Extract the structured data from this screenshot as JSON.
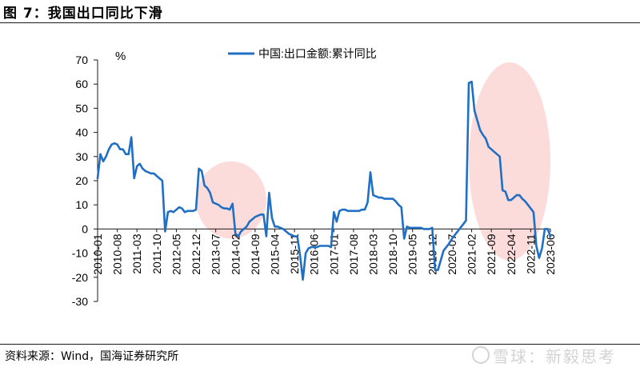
{
  "figure": {
    "title": "图 7：我国出口同比下滑",
    "source": "资料来源：Wind，国海证券研究所",
    "watermark": "雪球：新毅思考"
  },
  "colors": {
    "line": "#1f6fc5",
    "highlight": "#fbd5d5",
    "axis": "#1a1a1a"
  },
  "chart_data": {
    "type": "line",
    "unit_label": "%",
    "legend_position": "top-center",
    "grid": false,
    "ylim": [
      -30,
      70
    ],
    "yticks": [
      70,
      60,
      50,
      40,
      30,
      20,
      10,
      0,
      -10,
      -20,
      -30
    ],
    "xlabels": [
      "2010-01",
      "2010-08",
      "2011-03",
      "2011-10",
      "2012-05",
      "2012-12",
      "2013-07",
      "2014-02",
      "2014-09",
      "2015-04",
      "2015-11",
      "2016-06",
      "2017-01",
      "2017-08",
      "2018-03",
      "2018-10",
      "2019-05",
      "2019-12",
      "2020-07",
      "2021-02",
      "2021-09",
      "2022-04",
      "2022-11",
      "2023-06"
    ],
    "x_range": [
      "2010-01",
      "2023-06"
    ],
    "series": [
      {
        "name": "中国:出口金额:累计同比",
        "points": [
          [
            "2010-01",
            21
          ],
          [
            "2010-02",
            31
          ],
          [
            "2010-03",
            28
          ],
          [
            "2010-04",
            30
          ],
          [
            "2010-05",
            33
          ],
          [
            "2010-06",
            35
          ],
          [
            "2010-07",
            35.5
          ],
          [
            "2010-08",
            35
          ],
          [
            "2010-09",
            33
          ],
          [
            "2010-10",
            33
          ],
          [
            "2010-11",
            31
          ],
          [
            "2010-12",
            31
          ],
          [
            "2011-01",
            38
          ],
          [
            "2011-02",
            21
          ],
          [
            "2011-03",
            26
          ],
          [
            "2011-04",
            27
          ],
          [
            "2011-05",
            25
          ],
          [
            "2011-06",
            24
          ],
          [
            "2011-07",
            23.5
          ],
          [
            "2011-08",
            23
          ],
          [
            "2011-09",
            23
          ],
          [
            "2011-10",
            22
          ],
          [
            "2011-11",
            21
          ],
          [
            "2011-12",
            20
          ],
          [
            "2012-01",
            -1
          ],
          [
            "2012-02",
            7
          ],
          [
            "2012-03",
            7.5
          ],
          [
            "2012-04",
            7
          ],
          [
            "2012-05",
            8
          ],
          [
            "2012-06",
            9
          ],
          [
            "2012-07",
            8.5
          ],
          [
            "2012-08",
            7
          ],
          [
            "2012-09",
            7.5
          ],
          [
            "2012-10",
            7.5
          ],
          [
            "2012-11",
            7.5
          ],
          [
            "2012-12",
            8
          ],
          [
            "2013-01",
            25
          ],
          [
            "2013-02",
            24
          ],
          [
            "2013-03",
            18
          ],
          [
            "2013-04",
            17
          ],
          [
            "2013-05",
            15
          ],
          [
            "2013-06",
            11
          ],
          [
            "2013-07",
            10.5
          ],
          [
            "2013-08",
            10
          ],
          [
            "2013-09",
            9
          ],
          [
            "2013-10",
            8.5
          ],
          [
            "2013-11",
            8.5
          ],
          [
            "2013-12",
            8
          ],
          [
            "2014-01",
            10.5
          ],
          [
            "2014-02",
            -2
          ],
          [
            "2014-03",
            -3
          ],
          [
            "2014-04",
            -1
          ],
          [
            "2014-05",
            0
          ],
          [
            "2014-06",
            1
          ],
          [
            "2014-07",
            3
          ],
          [
            "2014-08",
            4
          ],
          [
            "2014-09",
            5
          ],
          [
            "2014-10",
            5.5
          ],
          [
            "2014-11",
            6
          ],
          [
            "2014-12",
            6
          ],
          [
            "2015-01",
            -3
          ],
          [
            "2015-02",
            15
          ],
          [
            "2015-03",
            4.5
          ],
          [
            "2015-04",
            1
          ],
          [
            "2015-05",
            1
          ],
          [
            "2015-06",
            0.5
          ],
          [
            "2015-07",
            0
          ],
          [
            "2015-08",
            -1
          ],
          [
            "2015-09",
            -2
          ],
          [
            "2015-10",
            -2.5
          ],
          [
            "2015-11",
            -3
          ],
          [
            "2015-12",
            -3
          ],
          [
            "2016-01",
            -11
          ],
          [
            "2016-02",
            -21
          ],
          [
            "2016-03",
            -10
          ],
          [
            "2016-04",
            -8
          ],
          [
            "2016-05",
            -7.5
          ],
          [
            "2016-06",
            -7.5
          ],
          [
            "2016-07",
            -7.5
          ],
          [
            "2016-08",
            -7
          ],
          [
            "2016-09",
            -7
          ],
          [
            "2016-10",
            -7
          ],
          [
            "2016-11",
            -7
          ],
          [
            "2016-12",
            -7.5
          ],
          [
            "2017-01",
            7
          ],
          [
            "2017-02",
            3
          ],
          [
            "2017-03",
            7.5
          ],
          [
            "2017-04",
            8
          ],
          [
            "2017-05",
            8
          ],
          [
            "2017-06",
            7.5
          ],
          [
            "2017-07",
            7.5
          ],
          [
            "2017-08",
            7.5
          ],
          [
            "2017-09",
            7.5
          ],
          [
            "2017-10",
            7.5
          ],
          [
            "2017-11",
            8
          ],
          [
            "2017-12",
            8
          ],
          [
            "2018-01",
            11
          ],
          [
            "2018-02",
            23.5
          ],
          [
            "2018-03",
            14
          ],
          [
            "2018-04",
            13.5
          ],
          [
            "2018-05",
            13
          ],
          [
            "2018-06",
            13
          ],
          [
            "2018-07",
            12.5
          ],
          [
            "2018-08",
            12.5
          ],
          [
            "2018-09",
            12.5
          ],
          [
            "2018-10",
            12.5
          ],
          [
            "2018-11",
            11.5
          ],
          [
            "2018-12",
            10
          ],
          [
            "2019-01",
            9
          ],
          [
            "2019-02",
            -4
          ],
          [
            "2019-03",
            1
          ],
          [
            "2019-04",
            0.5
          ],
          [
            "2019-05",
            0.5
          ],
          [
            "2019-06",
            0.5
          ],
          [
            "2019-07",
            0.5
          ],
          [
            "2019-08",
            0.5
          ],
          [
            "2019-09",
            0
          ],
          [
            "2019-10",
            0
          ],
          [
            "2019-11",
            0
          ],
          [
            "2019-12",
            0.5
          ],
          [
            "2020-01",
            -17
          ],
          [
            "2020-02",
            -17
          ],
          [
            "2020-03",
            -13
          ],
          [
            "2020-04",
            -9
          ],
          [
            "2020-05",
            -7.5
          ],
          [
            "2020-06",
            -6
          ],
          [
            "2020-07",
            -4
          ],
          [
            "2020-08",
            -2.5
          ],
          [
            "2020-09",
            -1
          ],
          [
            "2020-10",
            0.5
          ],
          [
            "2020-11",
            2
          ],
          [
            "2020-12",
            3.5
          ],
          [
            "2021-01",
            60.5
          ],
          [
            "2021-02",
            61
          ],
          [
            "2021-03",
            49
          ],
          [
            "2021-04",
            45
          ],
          [
            "2021-05",
            41
          ],
          [
            "2021-06",
            39
          ],
          [
            "2021-07",
            37.5
          ],
          [
            "2021-08",
            34
          ],
          [
            "2021-09",
            33
          ],
          [
            "2021-10",
            32
          ],
          [
            "2021-11",
            31
          ],
          [
            "2021-12",
            30
          ],
          [
            "2022-01",
            16
          ],
          [
            "2022-02",
            15.5
          ],
          [
            "2022-03",
            12
          ],
          [
            "2022-04",
            12
          ],
          [
            "2022-05",
            13
          ],
          [
            "2022-06",
            14
          ],
          [
            "2022-07",
            14
          ],
          [
            "2022-08",
            12.5
          ],
          [
            "2022-09",
            11.5
          ],
          [
            "2022-10",
            10
          ],
          [
            "2022-11",
            8.5
          ],
          [
            "2022-12",
            7
          ],
          [
            "2023-01",
            -7
          ],
          [
            "2023-02",
            -12
          ],
          [
            "2023-03",
            -8
          ],
          [
            "2023-04",
            0
          ],
          [
            "2023-05",
            0
          ],
          [
            "2023-06",
            -3
          ]
        ]
      }
    ],
    "highlights": [
      {
        "from": "2012-12",
        "to": "2015-01",
        "ylow": -4,
        "yhigh": 28
      },
      {
        "from": "2021-01",
        "to": "2023-06",
        "ylow": -13,
        "yhigh": 69
      }
    ]
  }
}
